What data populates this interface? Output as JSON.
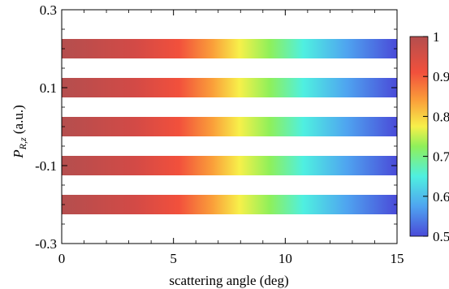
{
  "chart_data": {
    "type": "heatmap",
    "title": "",
    "xlabel": "scattering angle (deg)",
    "ylabel_main": "P",
    "ylabel_sub": "R,z",
    "ylabel_unit": " (a.u.)",
    "xlim": [
      0,
      15
    ],
    "ylim": [
      -0.3,
      0.3
    ],
    "xticks": [
      0,
      5,
      10,
      15
    ],
    "xtick_labels": [
      "0",
      "5",
      "10",
      "15"
    ],
    "yticks": [
      -0.3,
      -0.1,
      0.1,
      0.3
    ],
    "ytick_labels": [
      "-0.3",
      "-0.1",
      "0.1",
      "0.3"
    ],
    "bands": [
      {
        "y_center": 0.2,
        "x_start": 0,
        "x_end": 15
      },
      {
        "y_center": 0.1,
        "x_start": 0,
        "x_end": 15
      },
      {
        "y_center": 0.0,
        "x_start": 0,
        "x_end": 15
      },
      {
        "y_center": -0.1,
        "x_start": 0,
        "x_end": 15
      },
      {
        "y_center": -0.2,
        "x_start": 0,
        "x_end": 15
      }
    ],
    "band_values_along_x": [
      {
        "x": 0,
        "value": 1.0
      },
      {
        "x": 3,
        "value": 0.95
      },
      {
        "x": 7.5,
        "value": 0.8
      },
      {
        "x": 10,
        "value": 0.7
      },
      {
        "x": 12.5,
        "value": 0.58
      },
      {
        "x": 15,
        "value": 0.5
      }
    ],
    "colorbar": {
      "min": 0.5,
      "max": 1.0,
      "ticks": [
        0.5,
        0.6,
        0.7,
        0.8,
        0.9,
        1.0
      ],
      "tick_labels": [
        "0.5",
        "0.6",
        "0.7",
        "0.8",
        "0.9",
        "1"
      ],
      "colors": [
        "#4a4ad8",
        "#4bc0f0",
        "#5ef0d0",
        "#f7f04a",
        "#f9702e",
        "#b44e4e"
      ]
    },
    "grid": false
  }
}
